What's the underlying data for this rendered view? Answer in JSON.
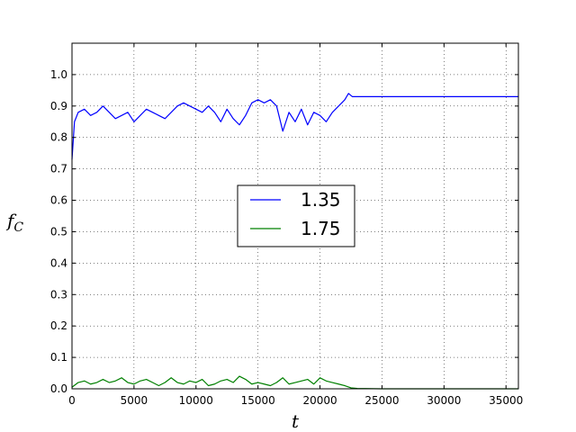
{
  "chart_data": {
    "type": "line",
    "title": "",
    "xlabel": "t",
    "ylabel": "f",
    "ylabel_sub": "C",
    "xlim": [
      0,
      36000
    ],
    "ylim": [
      0.0,
      1.1
    ],
    "xticks": [
      0,
      5000,
      10000,
      15000,
      20000,
      25000,
      30000,
      35000
    ],
    "yticks": [
      0.0,
      0.1,
      0.2,
      0.3,
      0.4,
      0.5,
      0.6,
      0.7,
      0.8,
      0.9,
      1.0
    ],
    "xtick_labels": [
      "0",
      "5000",
      "10000",
      "15000",
      "20000",
      "25000",
      "30000",
      "35000"
    ],
    "ytick_labels": [
      "0.0",
      "0.1",
      "0.2",
      "0.3",
      "0.4",
      "0.5",
      "0.6",
      "0.7",
      "0.8",
      "0.9",
      "1.0"
    ],
    "grid": true,
    "legend_position": "center",
    "series": [
      {
        "name": "1.35",
        "color": "#0000ff",
        "x": [
          0,
          200,
          500,
          1000,
          1500,
          2000,
          2500,
          3000,
          3500,
          4000,
          4500,
          5000,
          5500,
          6000,
          6500,
          7000,
          7500,
          8000,
          8500,
          9000,
          9500,
          10000,
          10500,
          11000,
          11500,
          12000,
          12500,
          13000,
          13500,
          14000,
          14500,
          15000,
          15500,
          16000,
          16500,
          17000,
          17500,
          18000,
          18500,
          19000,
          19500,
          20000,
          20500,
          21000,
          21500,
          22000,
          22300,
          22600,
          23000,
          25000,
          30000,
          36000
        ],
        "y": [
          0.73,
          0.85,
          0.88,
          0.89,
          0.87,
          0.88,
          0.9,
          0.88,
          0.86,
          0.87,
          0.88,
          0.85,
          0.87,
          0.89,
          0.88,
          0.87,
          0.86,
          0.88,
          0.9,
          0.91,
          0.9,
          0.89,
          0.88,
          0.9,
          0.88,
          0.85,
          0.89,
          0.86,
          0.84,
          0.87,
          0.91,
          0.92,
          0.91,
          0.92,
          0.9,
          0.82,
          0.88,
          0.85,
          0.89,
          0.84,
          0.88,
          0.87,
          0.85,
          0.88,
          0.9,
          0.92,
          0.94,
          0.93,
          0.93,
          0.93,
          0.93,
          0.93
        ]
      },
      {
        "name": "1.75",
        "color": "#008000",
        "x": [
          0,
          500,
          1000,
          1500,
          2000,
          2500,
          3000,
          3500,
          4000,
          4500,
          5000,
          5500,
          6000,
          6500,
          7000,
          7500,
          8000,
          8500,
          9000,
          9500,
          10000,
          10500,
          11000,
          11500,
          12000,
          12500,
          13000,
          13500,
          14000,
          14500,
          15000,
          15500,
          16000,
          16500,
          17000,
          17500,
          18000,
          18500,
          19000,
          19500,
          20000,
          20500,
          21000,
          21500,
          22000,
          22500,
          23000,
          25000,
          30000,
          36000
        ],
        "y": [
          0.005,
          0.02,
          0.025,
          0.015,
          0.02,
          0.03,
          0.02,
          0.025,
          0.035,
          0.02,
          0.015,
          0.025,
          0.03,
          0.02,
          0.01,
          0.02,
          0.035,
          0.02,
          0.015,
          0.025,
          0.02,
          0.03,
          0.01,
          0.015,
          0.025,
          0.03,
          0.02,
          0.04,
          0.03,
          0.015,
          0.02,
          0.015,
          0.01,
          0.02,
          0.035,
          0.015,
          0.02,
          0.025,
          0.03,
          0.015,
          0.035,
          0.025,
          0.02,
          0.015,
          0.01,
          0.003,
          0.001,
          0.0,
          0.0,
          0.0
        ]
      }
    ]
  }
}
